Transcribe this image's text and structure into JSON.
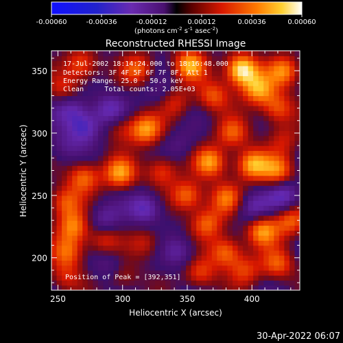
{
  "chart_data": {
    "type": "heatmap",
    "title": "Reconstructed RHESSI Image",
    "xlabel": "Heliocentric X (arcsec)",
    "ylabel": "Heliocentric Y (arcsec)",
    "xlim": [
      245,
      437
    ],
    "ylim": [
      174,
      366
    ],
    "x_ticks": [
      250,
      300,
      350,
      400
    ],
    "y_ticks": [
      200,
      250,
      300,
      350
    ],
    "colorbar": {
      "label_main": "(photons cm",
      "label_exp1": "-2",
      "label_mid": " s",
      "label_exp2": "-1",
      "label_end": " asec",
      "label_exp3": "-2",
      "label_close": ")",
      "range": [
        -0.0006,
        0.0006
      ],
      "tick_labels": [
        "-0.00060",
        "-0.00036",
        "-0.00012",
        "0.00012",
        "0.00036",
        "0.00060"
      ],
      "ticks": [
        -0.0006,
        -0.00036,
        -0.00012,
        0.00012,
        0.00036,
        0.0006
      ]
    },
    "annotations": [
      "17-Jul-2002 18:14:24.000 to 18:16:48.000",
      "Detectors: 3F 4F 5F 6F 7F 8F, Att 1",
      "Energy Range: 25.0 - 50.0 keV",
      "Clean     Total counts: 2.05E+03"
    ],
    "peak_label": "Position of Peak = [392,351]",
    "peak": [
      392,
      351
    ],
    "blobs": [
      {
        "x": 392,
        "y": 351,
        "v": 0.0006
      },
      {
        "x": 352,
        "y": 355,
        "v": 0.00042
      },
      {
        "x": 312,
        "y": 352,
        "v": 0.0003
      },
      {
        "x": 268,
        "y": 355,
        "v": 0.00032
      },
      {
        "x": 425,
        "y": 350,
        "v": 0.00036
      },
      {
        "x": 405,
        "y": 335,
        "v": 0.0004
      },
      {
        "x": 255,
        "y": 335,
        "v": 0.00022
      },
      {
        "x": 370,
        "y": 330,
        "v": 0.0003
      },
      {
        "x": 340,
        "y": 325,
        "v": 0.00024
      },
      {
        "x": 420,
        "y": 320,
        "v": 0.00032
      },
      {
        "x": 318,
        "y": 303,
        "v": 0.0004
      },
      {
        "x": 385,
        "y": 300,
        "v": 0.0003
      },
      {
        "x": 298,
        "y": 305,
        "v": 0.0002
      },
      {
        "x": 425,
        "y": 295,
        "v": 0.00018
      },
      {
        "x": 270,
        "y": 265,
        "v": 0.00034
      },
      {
        "x": 298,
        "y": 268,
        "v": 0.0004
      },
      {
        "x": 330,
        "y": 270,
        "v": 0.00028
      },
      {
        "x": 368,
        "y": 277,
        "v": 0.0004
      },
      {
        "x": 400,
        "y": 275,
        "v": 0.00044
      },
      {
        "x": 420,
        "y": 270,
        "v": 0.00034
      },
      {
        "x": 255,
        "y": 245,
        "v": 0.0003
      },
      {
        "x": 350,
        "y": 250,
        "v": 0.00036
      },
      {
        "x": 380,
        "y": 248,
        "v": 0.00032
      },
      {
        "x": 262,
        "y": 225,
        "v": 0.00036
      },
      {
        "x": 365,
        "y": 228,
        "v": 0.00032
      },
      {
        "x": 408,
        "y": 222,
        "v": 0.0004
      },
      {
        "x": 430,
        "y": 230,
        "v": 0.00032
      },
      {
        "x": 258,
        "y": 205,
        "v": 0.00032
      },
      {
        "x": 285,
        "y": 215,
        "v": 0.00024
      },
      {
        "x": 318,
        "y": 212,
        "v": 0.0002
      },
      {
        "x": 380,
        "y": 205,
        "v": 0.00036
      },
      {
        "x": 420,
        "y": 195,
        "v": 0.0003
      },
      {
        "x": 360,
        "y": 188,
        "v": 0.00028
      },
      {
        "x": 300,
        "y": 185,
        "v": 0.00018
      },
      {
        "x": 255,
        "y": 185,
        "v": 0.0002
      },
      {
        "x": 395,
        "y": 190,
        "v": 0.00024
      },
      {
        "x": 285,
        "y": 230,
        "v": -0.0002
      },
      {
        "x": 318,
        "y": 240,
        "v": -0.00028
      },
      {
        "x": 270,
        "y": 305,
        "v": -0.0003
      },
      {
        "x": 290,
        "y": 318,
        "v": -0.00024
      },
      {
        "x": 260,
        "y": 320,
        "v": -0.00024
      },
      {
        "x": 400,
        "y": 240,
        "v": -0.00022
      },
      {
        "x": 425,
        "y": 250,
        "v": -0.00026
      },
      {
        "x": 345,
        "y": 205,
        "v": -0.00018
      },
      {
        "x": 290,
        "y": 195,
        "v": -0.00014
      },
      {
        "x": 255,
        "y": 290,
        "v": -0.00012
      },
      {
        "x": 345,
        "y": 290,
        "v": -0.0001
      },
      {
        "x": 330,
        "y": 330,
        "v": -0.00012
      }
    ],
    "timestamp": "30-Apr-2022 06:07"
  }
}
